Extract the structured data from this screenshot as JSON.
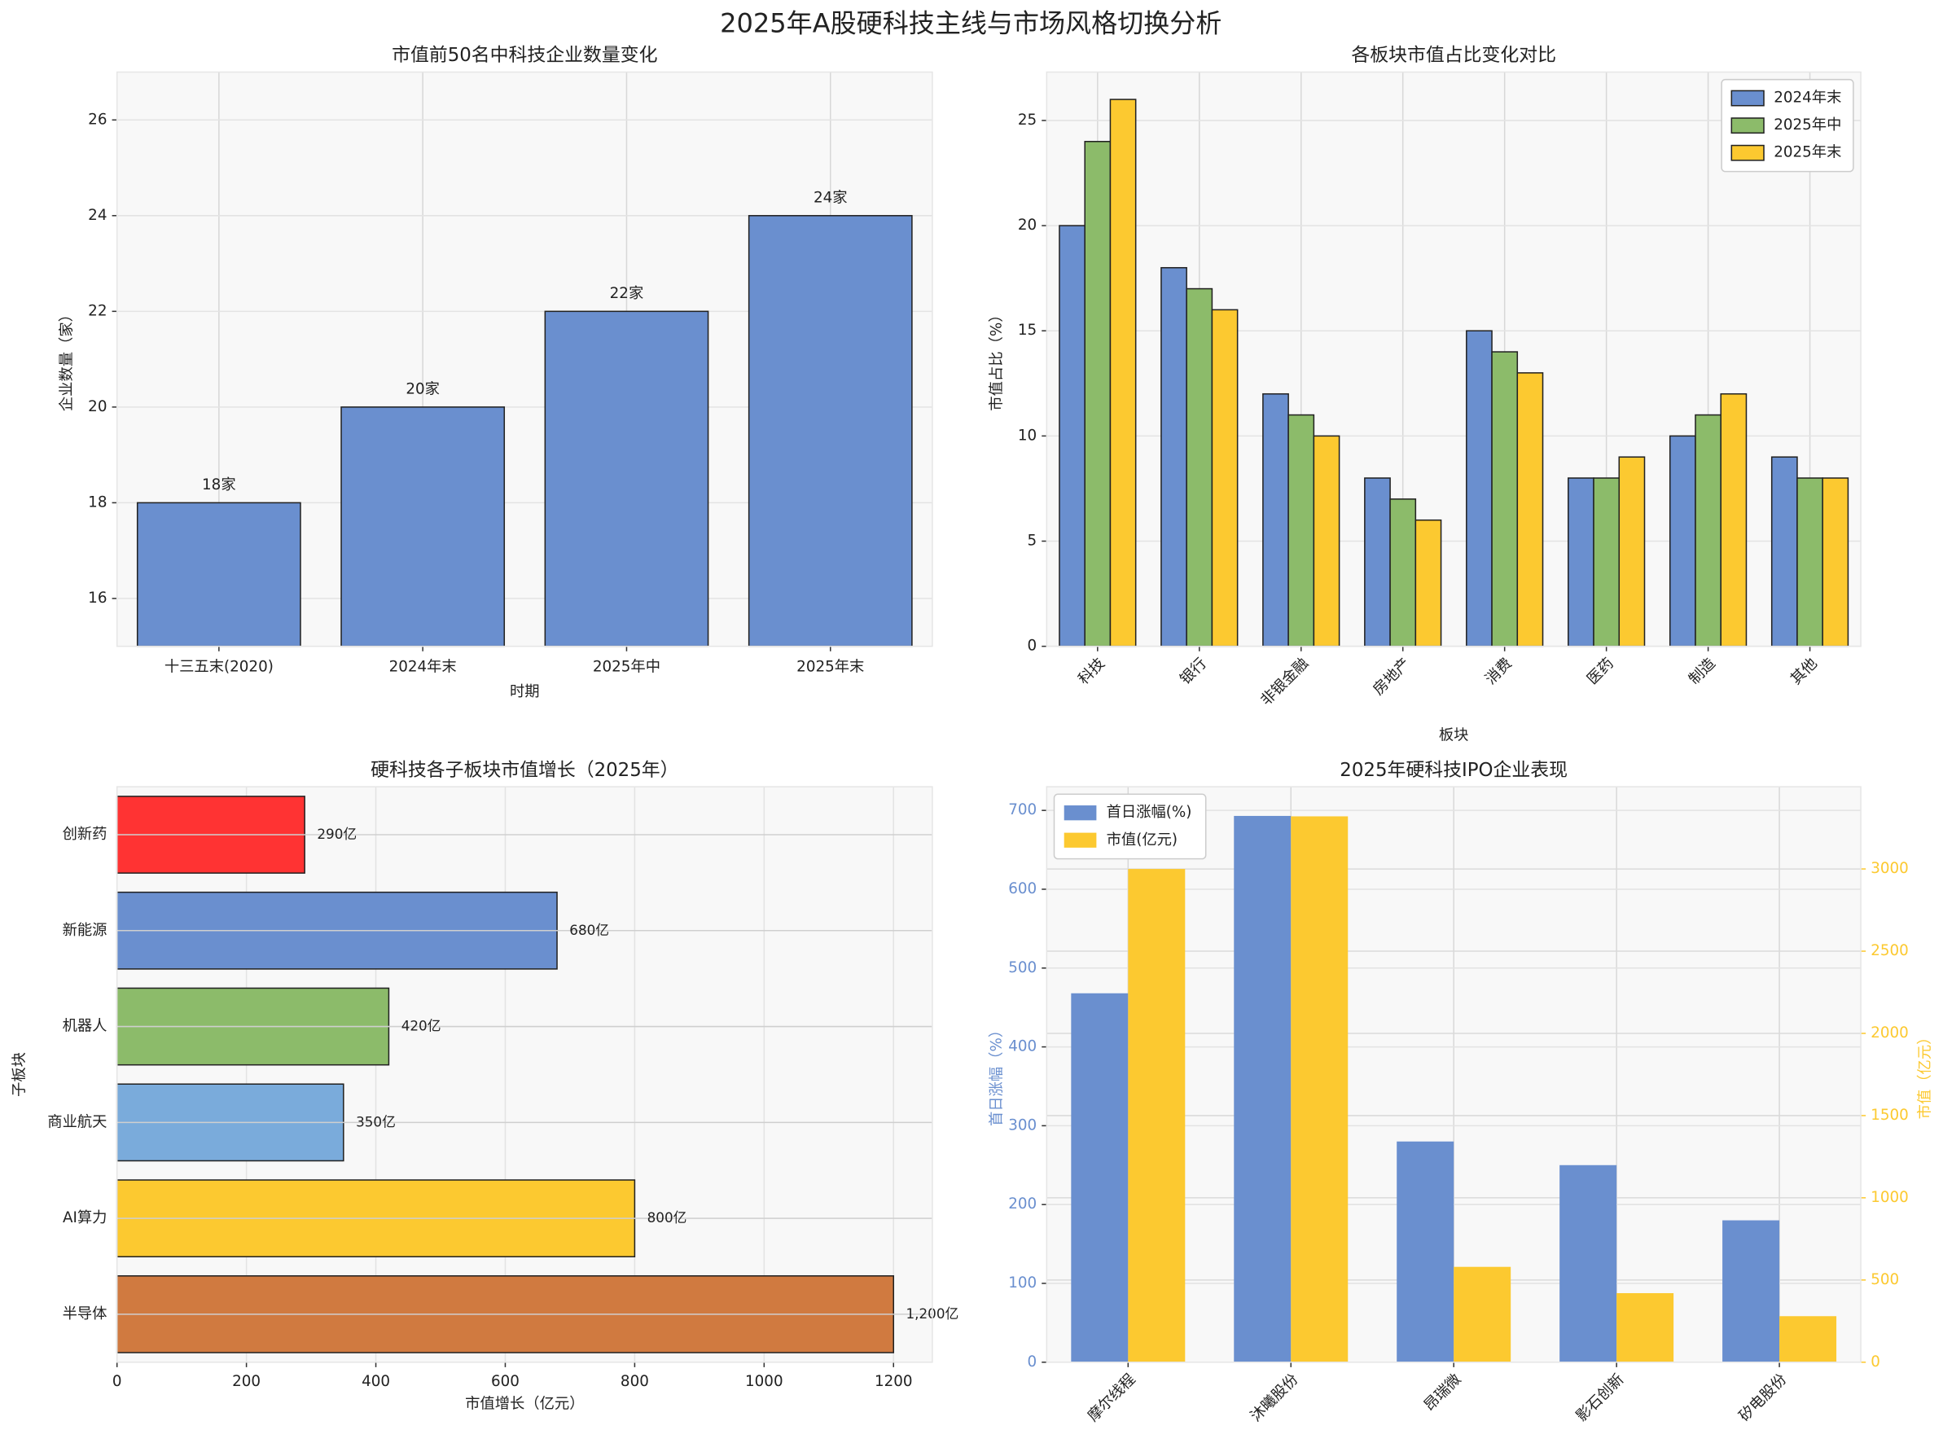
{
  "title": "2025年A股硬科技主线与市场风格切换分析",
  "chart_data": [
    {
      "type": "bar",
      "title": "市值前50名中科技企业数量变化",
      "xlabel": "时期",
      "ylabel": "企业数量（家）",
      "categories": [
        "十三五末(2020)",
        "2024年末",
        "2025年中",
        "2025年末"
      ],
      "series": [
        {
          "name": null,
          "color": "#6a8fcf",
          "values": [
            18,
            20,
            22,
            24
          ],
          "value_labels": [
            "18家",
            "20家",
            "22家",
            "24家"
          ]
        }
      ],
      "edgecolor": "#222222",
      "ylim": [
        15,
        27
      ],
      "yticks": [
        16,
        18,
        20,
        22,
        24,
        26
      ],
      "grid": true
    },
    {
      "type": "bar",
      "title": "各板块市值占比变化对比",
      "xlabel": "板块",
      "ylabel": "市值占比（%）",
      "categories": [
        "科技",
        "银行",
        "非银金融",
        "房地产",
        "消费",
        "医药",
        "制造",
        "其他"
      ],
      "series": [
        {
          "name": "2024年末",
          "color": "#6a8fcf",
          "values": [
            20,
            18,
            12,
            8,
            15,
            8,
            10,
            9
          ]
        },
        {
          "name": "2025年中",
          "color": "#8cbb6a",
          "values": [
            24,
            17,
            11,
            7,
            14,
            8,
            11,
            8
          ]
        },
        {
          "name": "2025年末",
          "color": "#fcc930",
          "values": [
            26,
            16,
            10,
            6,
            13,
            9,
            12,
            8
          ]
        }
      ],
      "edgecolor": "#222222",
      "ylim": [
        0,
        27.3
      ],
      "yticks": [
        0,
        5,
        10,
        15,
        20,
        25
      ],
      "grid": true,
      "legend": "upper right",
      "xtick_rotation": 45
    },
    {
      "type": "barh",
      "title": "硬科技各子板块市值增长（2025年）",
      "xlabel": "市值增长（亿元）",
      "ylabel": "子板块",
      "categories": [
        "半导体",
        "AI算力",
        "商业航天",
        "机器人",
        "新能源",
        "创新药"
      ],
      "values": [
        1200,
        800,
        350,
        420,
        680,
        290
      ],
      "value_labels": [
        "1,200亿",
        "800亿",
        "350亿",
        "420亿",
        "680亿",
        "290亿"
      ],
      "colors": [
        "#d07a40",
        "#fcc930",
        "#7aabdb",
        "#8cbb6a",
        "#6a8fcf",
        "#ff3333"
      ],
      "edgecolor": "#222222",
      "xlim": [
        0,
        1260
      ],
      "xticks": [
        0,
        200,
        400,
        600,
        800,
        1000,
        1200
      ],
      "grid": true
    },
    {
      "type": "bar",
      "title": "2025年硬科技IPO企业表现",
      "ylabel": "首日涨幅（%）",
      "y2label": "市值（亿元）",
      "categories": [
        "摩尔线程",
        "沐曦股份",
        "昂瑞微",
        "影石创新",
        "矽电股份"
      ],
      "series": [
        {
          "name": "首日涨幅(%)",
          "color": "#6a8fcf",
          "values": [
            468,
            693,
            280,
            250,
            180
          ]
        },
        {
          "name": "市值(亿元)",
          "color": "#fcc930",
          "values": [
            3000,
            3320,
            580,
            420,
            280
          ],
          "axis": "y2"
        }
      ],
      "ylim": [
        0,
        730
      ],
      "yticks": [
        0,
        100,
        200,
        300,
        400,
        500,
        600,
        700
      ],
      "y2lim": [
        0,
        3500
      ],
      "y2ticks": [
        0,
        500,
        1000,
        1500,
        2000,
        2500,
        3000
      ],
      "grid": true,
      "legend": "upper left",
      "xtick_rotation": 45
    }
  ]
}
